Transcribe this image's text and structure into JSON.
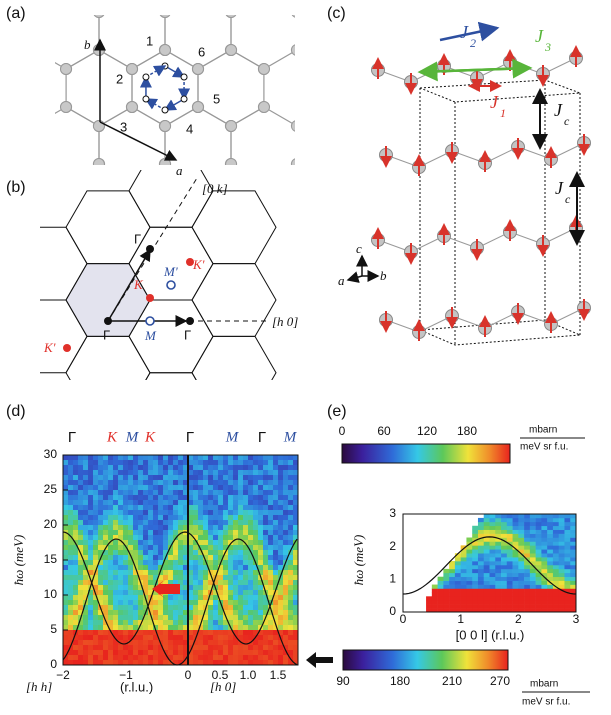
{
  "panel_a": {
    "label": "(a)",
    "axis_b": "b",
    "axis_a": "a",
    "sites": [
      "1",
      "2",
      "3",
      "4",
      "5",
      "6"
    ]
  },
  "panel_b": {
    "label": "(b)",
    "direction_k": "[0 k]",
    "direction_h": "[h 0]",
    "gamma": "Γ",
    "K": "K",
    "K_prime": "K'",
    "M": "M",
    "M_prime": "M'"
  },
  "panel_c": {
    "label": "(c)",
    "J": "J",
    "J1_sub": "1",
    "J2_sub": "2",
    "J3_sub": "3",
    "Jc_sub": "c",
    "axis_a": "a",
    "axis_b": "b",
    "axis_c": "c"
  },
  "panel_d": {
    "label": "(d)",
    "top_labels": [
      "Γ",
      "K",
      "M",
      "K",
      "Γ",
      "M",
      "Γ",
      "M"
    ],
    "y_label": "ħω (meV)",
    "yticks": [
      "0",
      "5",
      "10",
      "15",
      "20",
      "25",
      "30"
    ],
    "xticks_left": [
      "−2",
      "−1",
      "0"
    ],
    "xticks_right": [
      "0.5",
      "1.0",
      "1.5"
    ],
    "x_label": [
      "[h h]",
      "(r.l.u.)",
      "[h 0]"
    ]
  },
  "panel_e": {
    "label": "(e)",
    "y_label": "ħω (meV)",
    "yticks": [
      "0",
      "1",
      "2",
      "3"
    ],
    "xticks": [
      "0",
      "1",
      "2",
      "3"
    ],
    "x_label": "[0 0 l] (r.l.u.)",
    "colorbar_ticks": [
      "0",
      "60",
      "120",
      "180"
    ],
    "colorbar_unit": [
      "mbarn",
      "meV sr f.u."
    ]
  },
  "colorbar_d": {
    "ticks": [
      "90",
      "180",
      "210",
      "270"
    ],
    "unit": [
      "mbarn",
      "meV sr f.u."
    ]
  }
}
